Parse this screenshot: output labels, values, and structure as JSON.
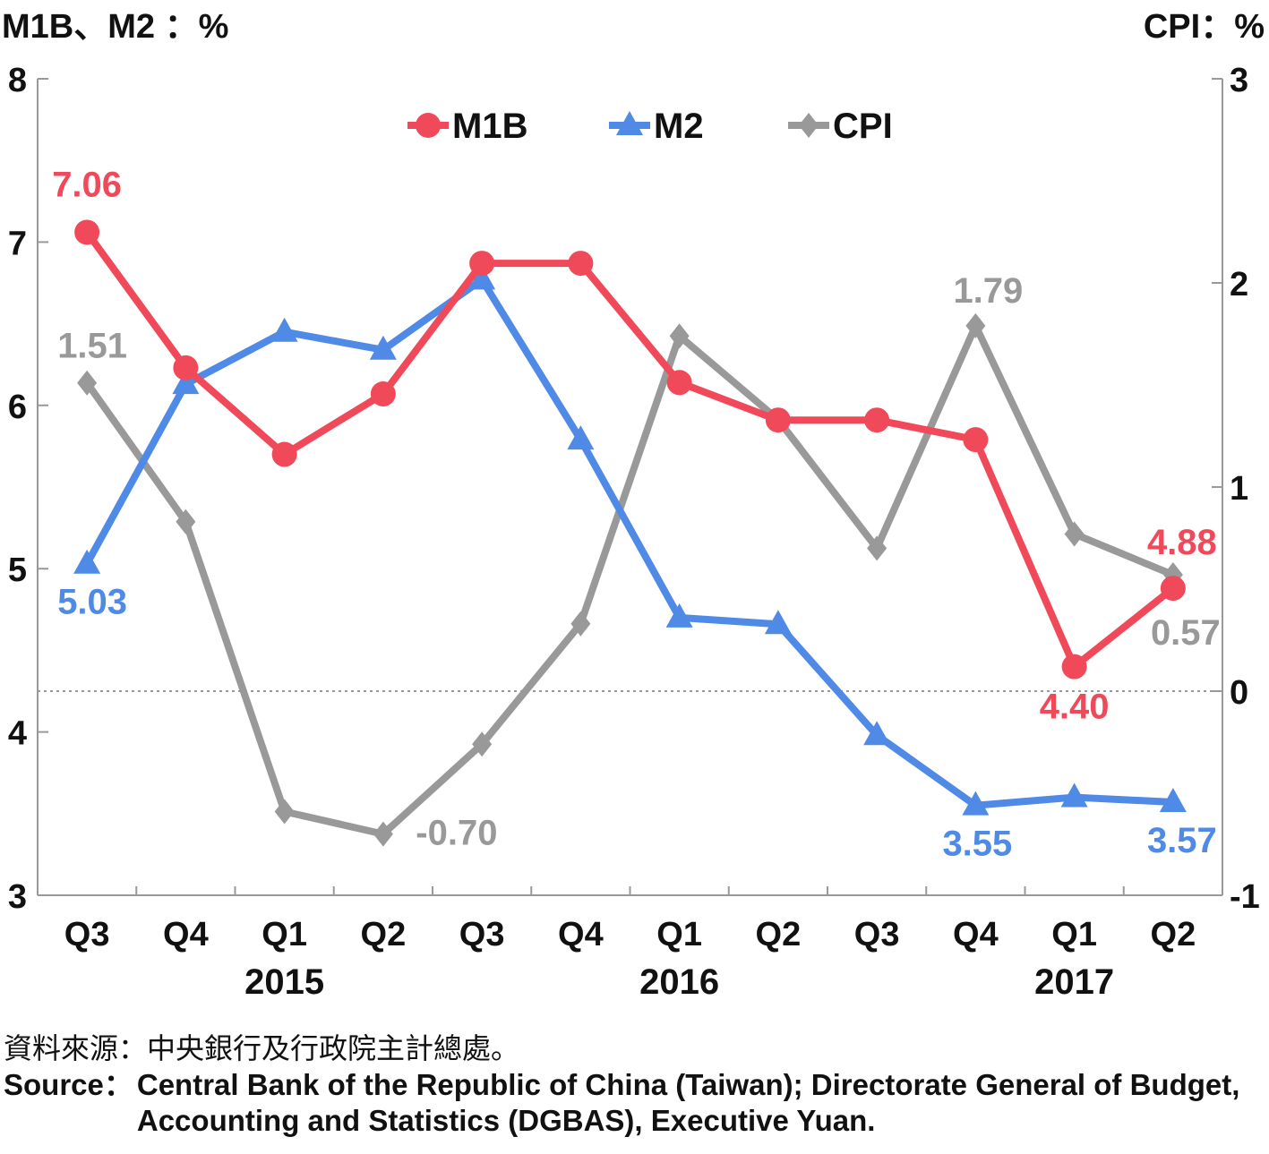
{
  "chart_data": {
    "type": "line",
    "left_axis_title": "M1B、M2 ：%",
    "right_axis_title": "CPI：%",
    "left_axis": {
      "min": 3,
      "max": 8,
      "ticks": [
        "3",
        "4",
        "5",
        "6",
        "7",
        "8"
      ]
    },
    "right_axis": {
      "min": -1,
      "max": 3,
      "ticks": [
        "-1",
        "0",
        "1",
        "2",
        "3"
      ]
    },
    "categories": [
      "Q3",
      "Q4",
      "Q1",
      "Q2",
      "Q3",
      "Q4",
      "Q1",
      "Q2",
      "Q3",
      "Q4",
      "Q1",
      "Q2"
    ],
    "years": [
      {
        "label": "2015",
        "center_index": 2
      },
      {
        "label": "2016",
        "center_index": 6
      },
      {
        "label": "2017",
        "center_index": 10
      }
    ],
    "series": [
      {
        "name": "M1B",
        "axis": "left",
        "color": "#f04a5a",
        "marker": "circle",
        "values": [
          7.06,
          6.23,
          5.7,
          6.07,
          6.87,
          6.87,
          6.14,
          5.91,
          5.91,
          5.79,
          4.4,
          4.88
        ],
        "labeled_points": [
          {
            "index": 0,
            "text": "7.06"
          },
          {
            "index": 10,
            "text": "4.40"
          },
          {
            "index": 11,
            "text": "4.88"
          }
        ]
      },
      {
        "name": "M2",
        "axis": "left",
        "color": "#4f8ae6",
        "marker": "triangle",
        "values": [
          5.03,
          6.13,
          6.45,
          6.34,
          6.77,
          5.79,
          4.7,
          4.66,
          3.98,
          3.55,
          3.6,
          3.57
        ],
        "labeled_points": [
          {
            "index": 0,
            "text": "5.03"
          },
          {
            "index": 9,
            "text": "3.55"
          },
          {
            "index": 11,
            "text": "3.57"
          }
        ]
      },
      {
        "name": "CPI",
        "axis": "right",
        "color": "#999999",
        "marker": "diamond",
        "values": [
          1.51,
          0.83,
          -0.59,
          -0.7,
          -0.26,
          0.33,
          1.74,
          1.33,
          0.7,
          1.79,
          0.77,
          0.57
        ],
        "labeled_points": [
          {
            "index": 0,
            "text": "1.51"
          },
          {
            "index": 3,
            "text": "-0.70"
          },
          {
            "index": 9,
            "text": "1.79"
          },
          {
            "index": 11,
            "text": "0.57"
          }
        ]
      }
    ],
    "reference_line": {
      "axis": "right",
      "value": 0,
      "style": "dotted"
    },
    "legend": {
      "position": "top-center"
    },
    "grid": false
  },
  "source": {
    "zh": "資料來源：中央銀行及行政院主計總處。",
    "en_label": "Source：",
    "en_text": "Central Bank of the Republic of China (Taiwan); Directorate General of Budget, Accounting and Statistics (DGBAS), Executive Yuan."
  }
}
